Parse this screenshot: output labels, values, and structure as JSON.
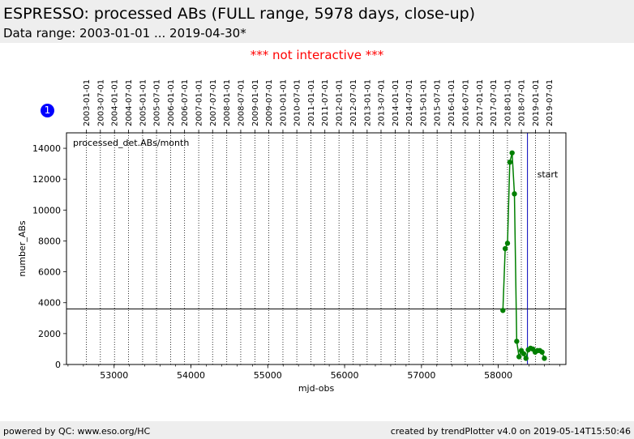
{
  "header": {
    "title": "ESPRESSO: processed ABs (FULL range, 5978 days, close-up)",
    "subtitle": "Data range: 2003-01-01 ... 2019-04-30*"
  },
  "notice": "*** not interactive ***",
  "badge": "1",
  "footer": {
    "left": "powered by QC: www.eso.org/HC",
    "right": "created by trendPlotter v4.0 on 2019-05-14T15:50:46"
  },
  "colors": {
    "series": "#007f00",
    "start_line": "#0000bb",
    "badge": "#0000ff",
    "notice": "#ff0000"
  },
  "chart_data": {
    "type": "line",
    "xlabel": "mjd-obs",
    "ylabel": "number_ABs",
    "xlim": [
      52380,
      58880
    ],
    "ylim": [
      0,
      15000
    ],
    "x_ticks": [
      53000,
      54000,
      55000,
      56000,
      57000,
      58000
    ],
    "y_ticks": [
      0,
      2000,
      4000,
      6000,
      8000,
      10000,
      12000,
      14000
    ],
    "series_label": "processed_det.ABs/month",
    "reference_line": 3600,
    "start_marker": {
      "x": 58380,
      "label": "start"
    },
    "date_ticks": [
      "2003-01-01",
      "2003-07-01",
      "2004-01-01",
      "2004-07-01",
      "2005-01-01",
      "2005-07-01",
      "2006-01-01",
      "2006-07-01",
      "2007-01-01",
      "2007-07-01",
      "2008-01-01",
      "2008-07-01",
      "2009-01-01",
      "2009-07-01",
      "2010-01-01",
      "2010-07-01",
      "2011-01-01",
      "2011-07-01",
      "2012-01-01",
      "2012-07-01",
      "2013-01-01",
      "2013-07-01",
      "2014-01-01",
      "2014-07-01",
      "2015-01-01",
      "2015-07-01",
      "2016-01-01",
      "2016-07-01",
      "2017-01-01",
      "2017-07-01",
      "2018-01-01",
      "2018-07-01",
      "2019-01-01",
      "2019-07-01"
    ],
    "date_tick_mjd": [
      52640,
      52821,
      53005,
      53187,
      53371,
      53552,
      53736,
      53917,
      54101,
      54282,
      54466,
      54648,
      54832,
      55013,
      55197,
      55378,
      55562,
      55743,
      55927,
      56109,
      56293,
      56474,
      56658,
      56839,
      57023,
      57204,
      57388,
      57570,
      57754,
      57935,
      58119,
      58300,
      58484,
      58665
    ],
    "series": [
      {
        "x": [
          58060,
          58090,
          58120,
          58150,
          58180,
          58210,
          58240,
          58270,
          58300,
          58330,
          58360,
          58390,
          58420,
          58450,
          58480,
          58510,
          58540,
          58570,
          58600
        ],
        "y": [
          3500,
          7500,
          7850,
          13100,
          13700,
          11050,
          1500,
          500,
          900,
          700,
          400,
          950,
          1050,
          1000,
          800,
          900,
          900,
          800,
          400
        ]
      }
    ]
  }
}
